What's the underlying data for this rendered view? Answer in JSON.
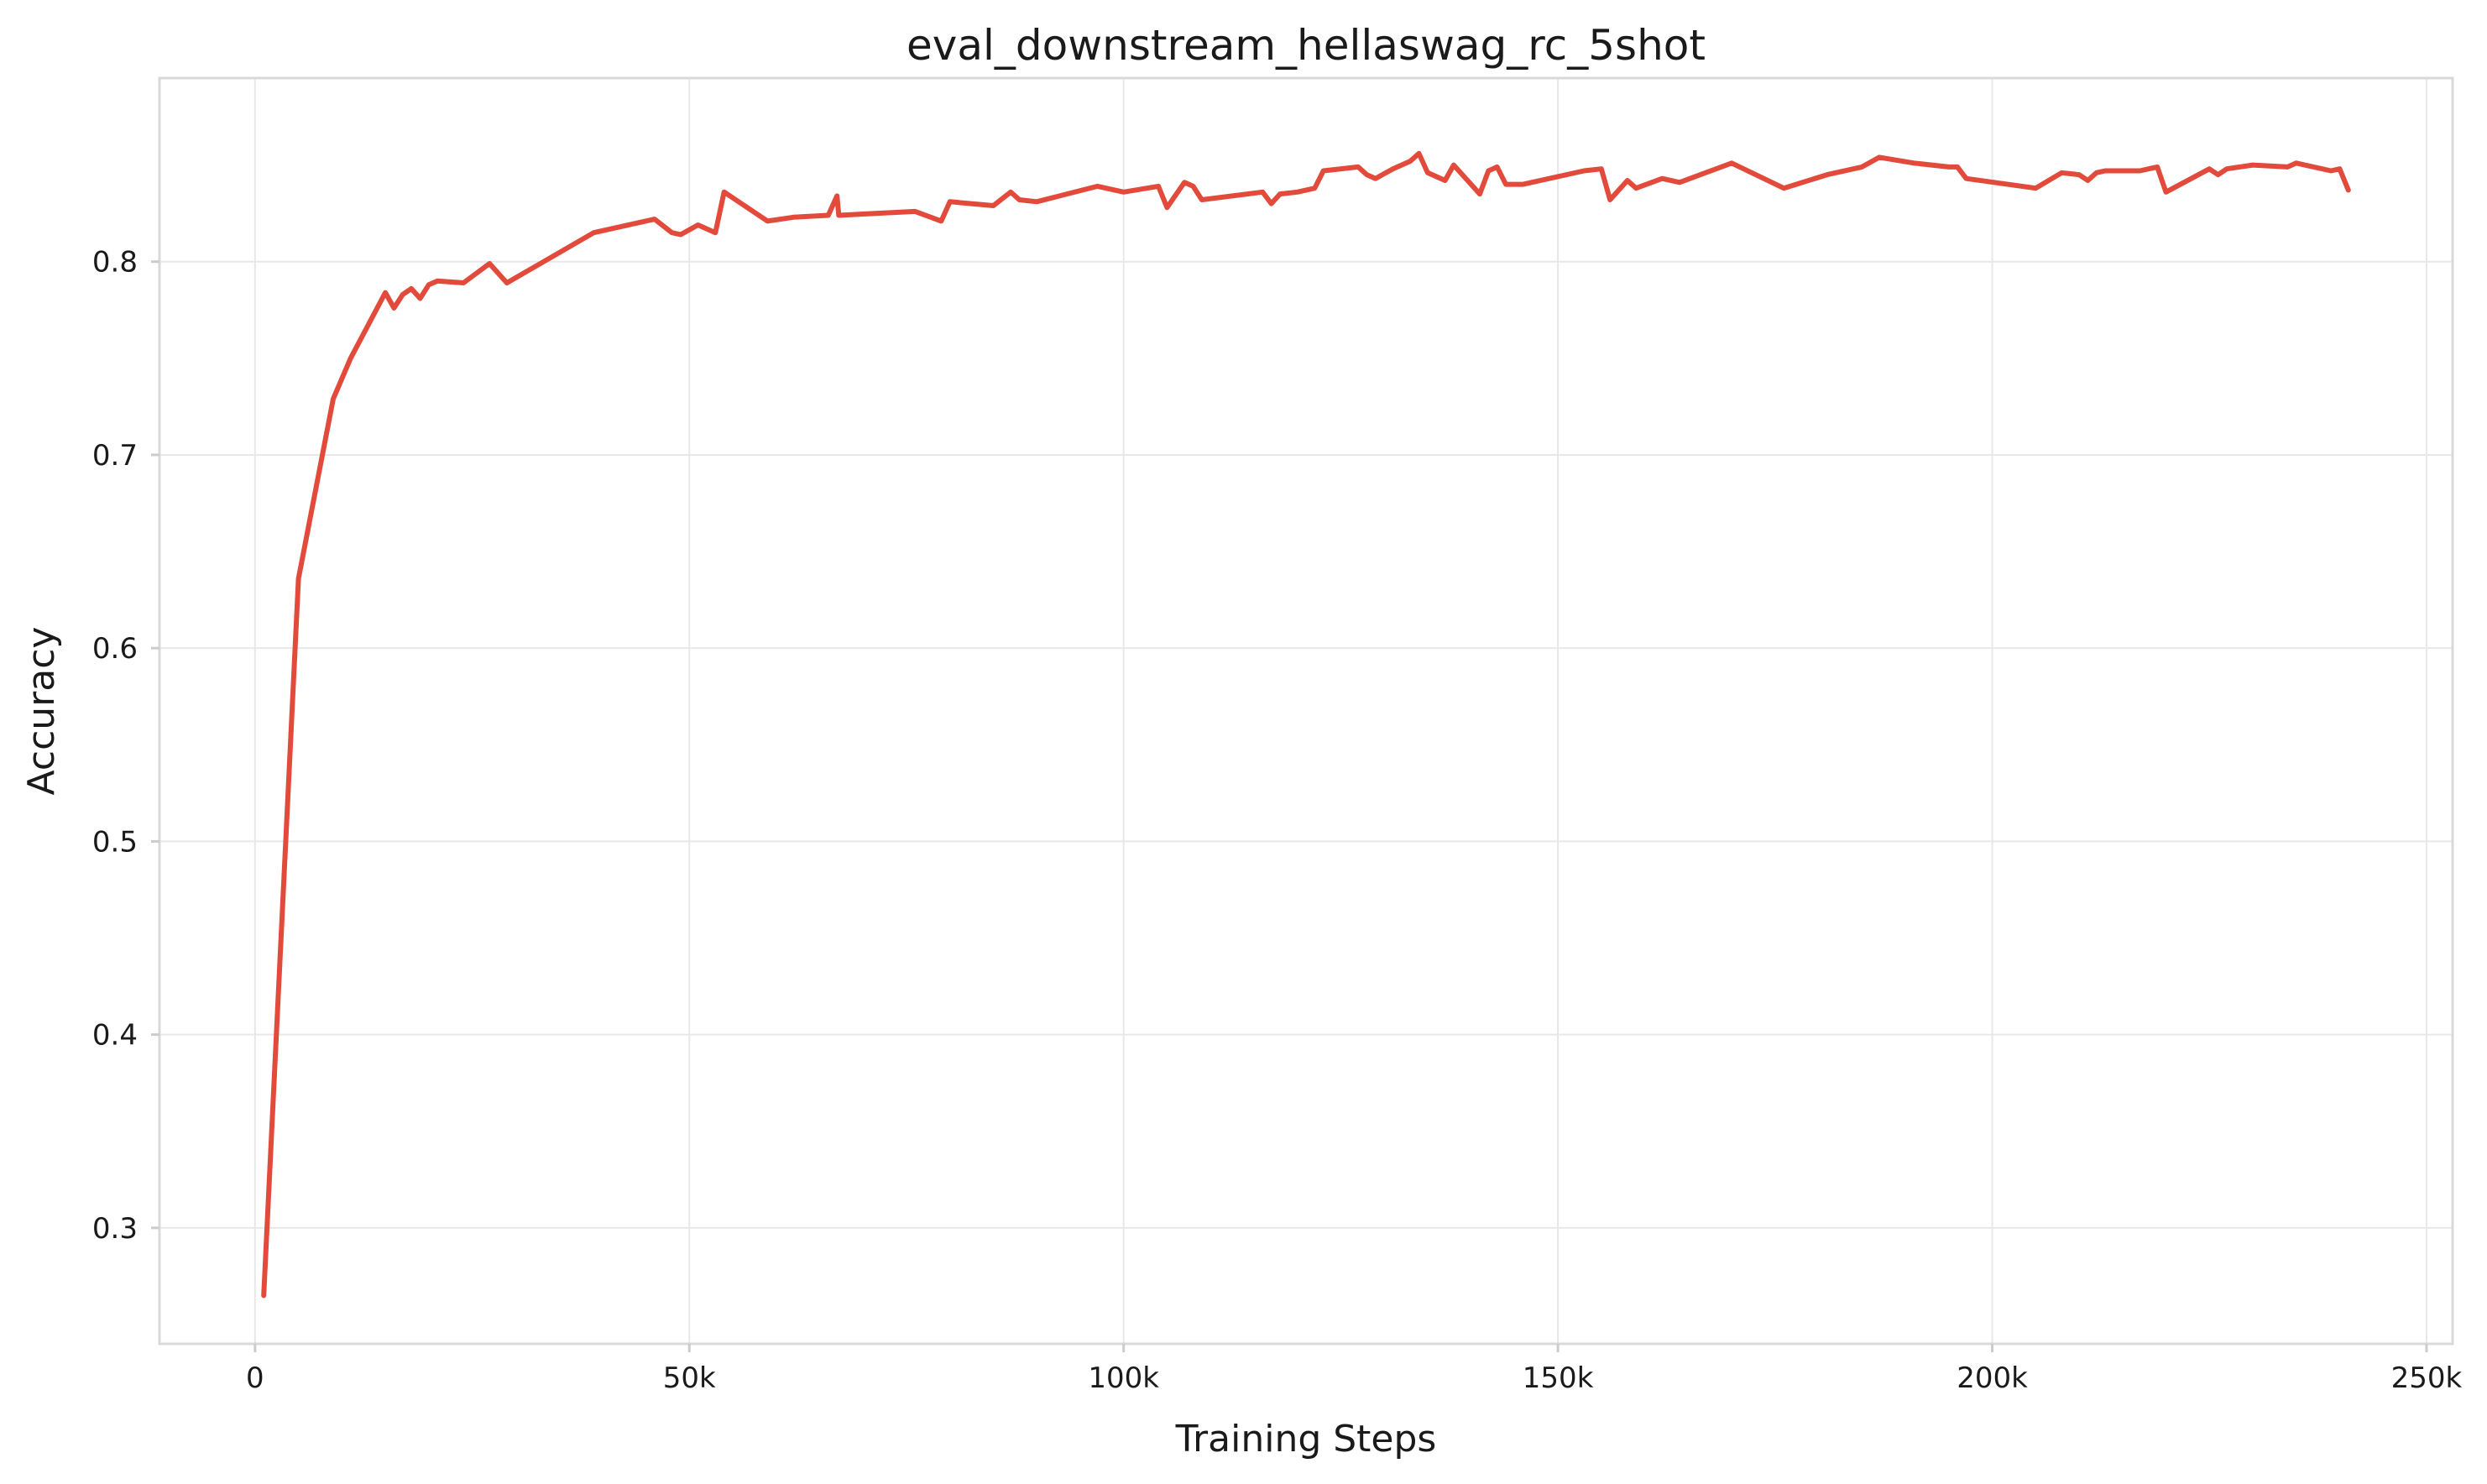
{
  "chart_data": {
    "type": "line",
    "title": "eval_downstream_hellaswag_rc_5shot",
    "xlabel": "Training Steps",
    "ylabel": "Accuracy",
    "xlim": [
      -11000,
      253000
    ],
    "ylim": [
      0.24,
      0.895
    ],
    "xticks": [
      {
        "value": 0,
        "label": "0"
      },
      {
        "value": 50000,
        "label": "50k"
      },
      {
        "value": 100000,
        "label": "100k"
      },
      {
        "value": 150000,
        "label": "150k"
      },
      {
        "value": 200000,
        "label": "200k"
      },
      {
        "value": 250000,
        "label": "250k"
      }
    ],
    "yticks": [
      {
        "value": 0.3,
        "label": "0.3"
      },
      {
        "value": 0.4,
        "label": "0.4"
      },
      {
        "value": 0.5,
        "label": "0.5"
      },
      {
        "value": 0.6,
        "label": "0.6"
      },
      {
        "value": 0.7,
        "label": "0.7"
      },
      {
        "value": 0.8,
        "label": "0.8"
      }
    ],
    "grid": true,
    "legend": "none",
    "series": [
      {
        "color": "#e24a3b",
        "x": [
          1000,
          5000,
          9000,
          11000,
          15000,
          16000,
          17000,
          18000,
          19000,
          20000,
          21000,
          24000,
          27000,
          29000,
          39000,
          46000,
          48000,
          49000,
          51000,
          53000,
          54000,
          59000,
          62000,
          66000,
          67000,
          67200,
          76000,
          79000,
          80000,
          85000,
          87000,
          88000,
          90000,
          97000,
          100000,
          104000,
          105000,
          107000,
          108000,
          109000,
          116000,
          117000,
          118000,
          120000,
          122000,
          123000,
          127000,
          128000,
          129000,
          131000,
          133000,
          134000,
          135000,
          137000,
          138000,
          141000,
          142000,
          143000,
          144000,
          146000,
          153000,
          155000,
          156000,
          158000,
          159000,
          162000,
          164000,
          170000,
          176000,
          181000,
          185000,
          187000,
          191000,
          195000,
          196000,
          197000,
          205000,
          208000,
          210000,
          211000,
          212000,
          213000,
          217000,
          218000,
          219000,
          220000,
          225000,
          226000,
          227000,
          230000,
          234000,
          235000,
          239000,
          240000,
          241000
        ],
        "y": [
          0.265,
          0.636,
          0.729,
          0.75,
          0.784,
          0.776,
          0.783,
          0.786,
          0.781,
          0.788,
          0.79,
          0.789,
          0.799,
          0.789,
          0.815,
          0.822,
          0.815,
          0.814,
          0.819,
          0.815,
          0.836,
          0.821,
          0.823,
          0.824,
          0.834,
          0.824,
          0.826,
          0.821,
          0.831,
          0.829,
          0.836,
          0.832,
          0.831,
          0.839,
          0.836,
          0.839,
          0.828,
          0.841,
          0.839,
          0.832,
          0.836,
          0.83,
          0.835,
          0.836,
          0.838,
          0.847,
          0.849,
          0.845,
          0.843,
          0.848,
          0.852,
          0.856,
          0.846,
          0.842,
          0.85,
          0.835,
          0.847,
          0.849,
          0.84,
          0.84,
          0.847,
          0.848,
          0.832,
          0.842,
          0.838,
          0.843,
          0.841,
          0.851,
          0.838,
          0.845,
          0.849,
          0.854,
          0.851,
          0.849,
          0.849,
          0.843,
          0.838,
          0.846,
          0.845,
          0.842,
          0.846,
          0.847,
          0.847,
          0.848,
          0.849,
          0.836,
          0.848,
          0.845,
          0.848,
          0.85,
          0.849,
          0.851,
          0.847,
          0.848,
          0.837
        ]
      }
    ]
  }
}
